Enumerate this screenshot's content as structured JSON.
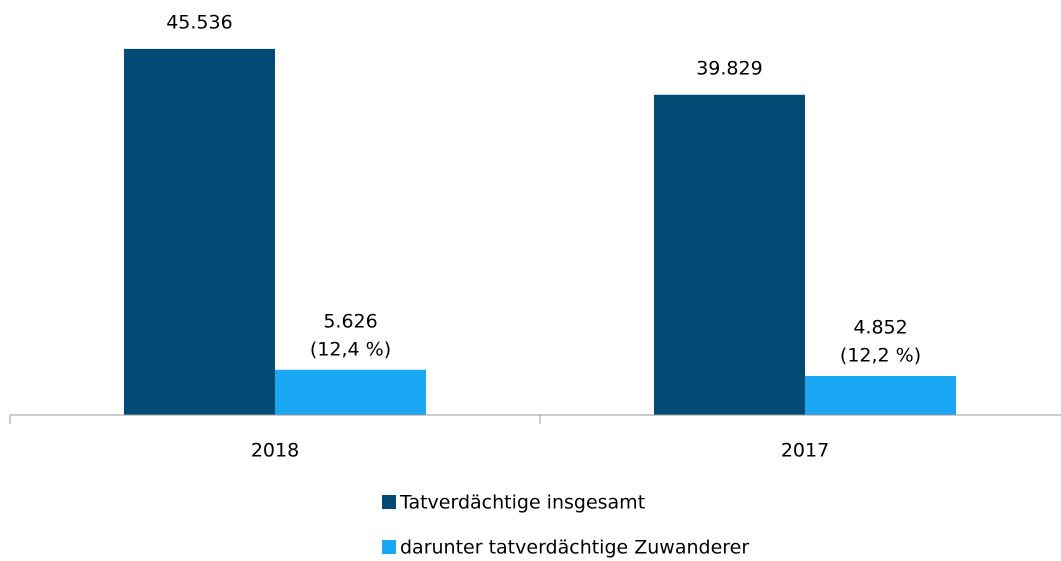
{
  "chart_data": {
    "type": "bar",
    "categories": [
      "2018",
      "2017"
    ],
    "series": [
      {
        "name": "Tatverdächtige insgesamt",
        "color": "#004a73",
        "values": [
          45536,
          39829
        ],
        "value_labels": [
          "45.536",
          "39.829"
        ]
      },
      {
        "name": "darunter tatverdächtige Zuwanderer",
        "color": "#1aa8f5",
        "values": [
          5626,
          4852
        ],
        "value_labels": [
          "5.626",
          "4.852"
        ],
        "annotations": [
          "(12,4 %)",
          "(12,2 %)"
        ]
      }
    ],
    "ylim": [
      0,
      50000
    ],
    "grid": false
  }
}
